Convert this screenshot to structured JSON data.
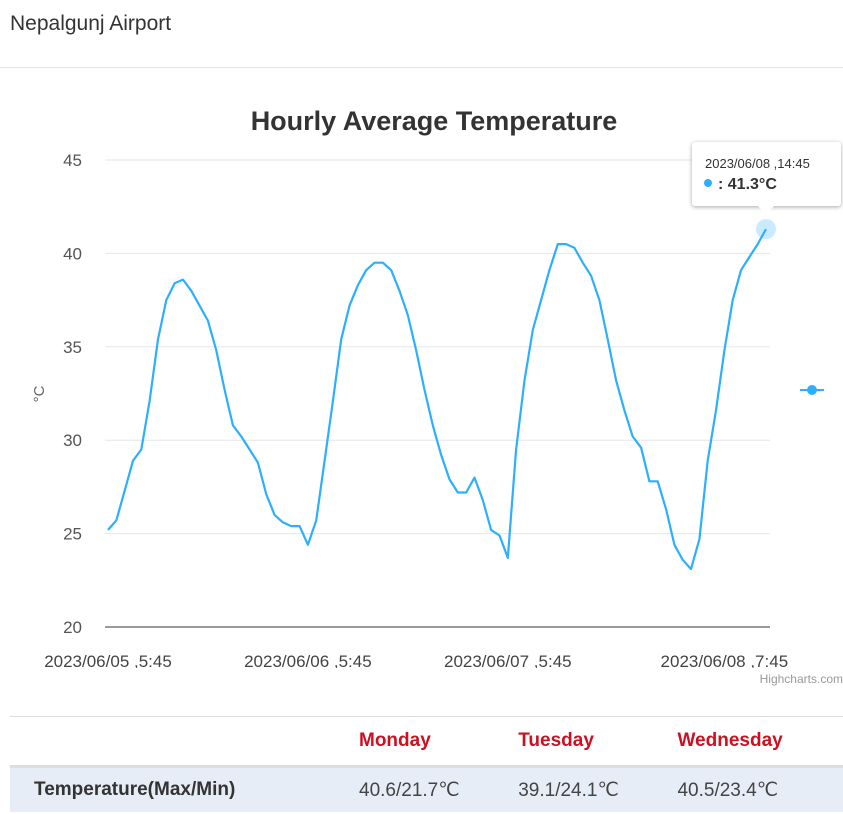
{
  "header": {
    "title": "Nepalgunj Airport"
  },
  "chart_data": {
    "type": "line",
    "title": "Hourly Average Temperature",
    "ylabel": "°C",
    "ylim": [
      20,
      45
    ],
    "yticks": [
      20,
      25,
      30,
      35,
      40,
      45
    ],
    "xtick_labels": [
      {
        "index": 0,
        "label": "2023/06/05 ,5:45"
      },
      {
        "index": 24,
        "label": "2023/06/06 ,5:45"
      },
      {
        "index": 48,
        "label": "2023/06/07 ,5:45"
      },
      {
        "index": 74,
        "label": "2023/06/08 ,7:45"
      }
    ],
    "color": "#2caffe",
    "series": [
      {
        "name": "Temperature",
        "values": [
          25.2,
          25.7,
          27.3,
          28.9,
          29.5,
          32.1,
          35.4,
          37.5,
          38.4,
          38.6,
          38.0,
          37.2,
          36.4,
          34.8,
          32.7,
          30.8,
          30.2,
          29.5,
          28.8,
          27.1,
          26.0,
          25.6,
          25.4,
          25.4,
          24.4,
          25.7,
          28.9,
          32.1,
          35.4,
          37.2,
          38.3,
          39.1,
          39.5,
          39.5,
          39.1,
          38.0,
          36.7,
          34.8,
          32.7,
          30.8,
          29.2,
          27.9,
          27.2,
          27.2,
          28.0,
          26.8,
          25.2,
          24.9,
          23.7,
          29.5,
          33.2,
          35.9,
          37.5,
          39.1,
          40.5,
          40.5,
          40.3,
          39.5,
          38.8,
          37.5,
          35.4,
          33.2,
          31.6,
          30.2,
          29.6,
          27.8,
          27.8,
          26.3,
          24.4,
          23.6,
          23.1,
          24.7,
          28.9,
          31.6,
          34.8,
          37.5,
          39.1,
          39.8,
          40.5,
          41.3
        ]
      }
    ],
    "tooltip": {
      "date": "2023/06/08 ,14:45",
      "value": ": 41.3°C"
    },
    "credits": "Highcharts.com"
  },
  "table": {
    "days": [
      "Monday",
      "Tuesday",
      "Wednesday"
    ],
    "row_label": "Temperature(Max/Min)",
    "values": [
      "40.6/21.7℃",
      "39.1/24.1℃",
      "40.5/23.4℃"
    ]
  }
}
